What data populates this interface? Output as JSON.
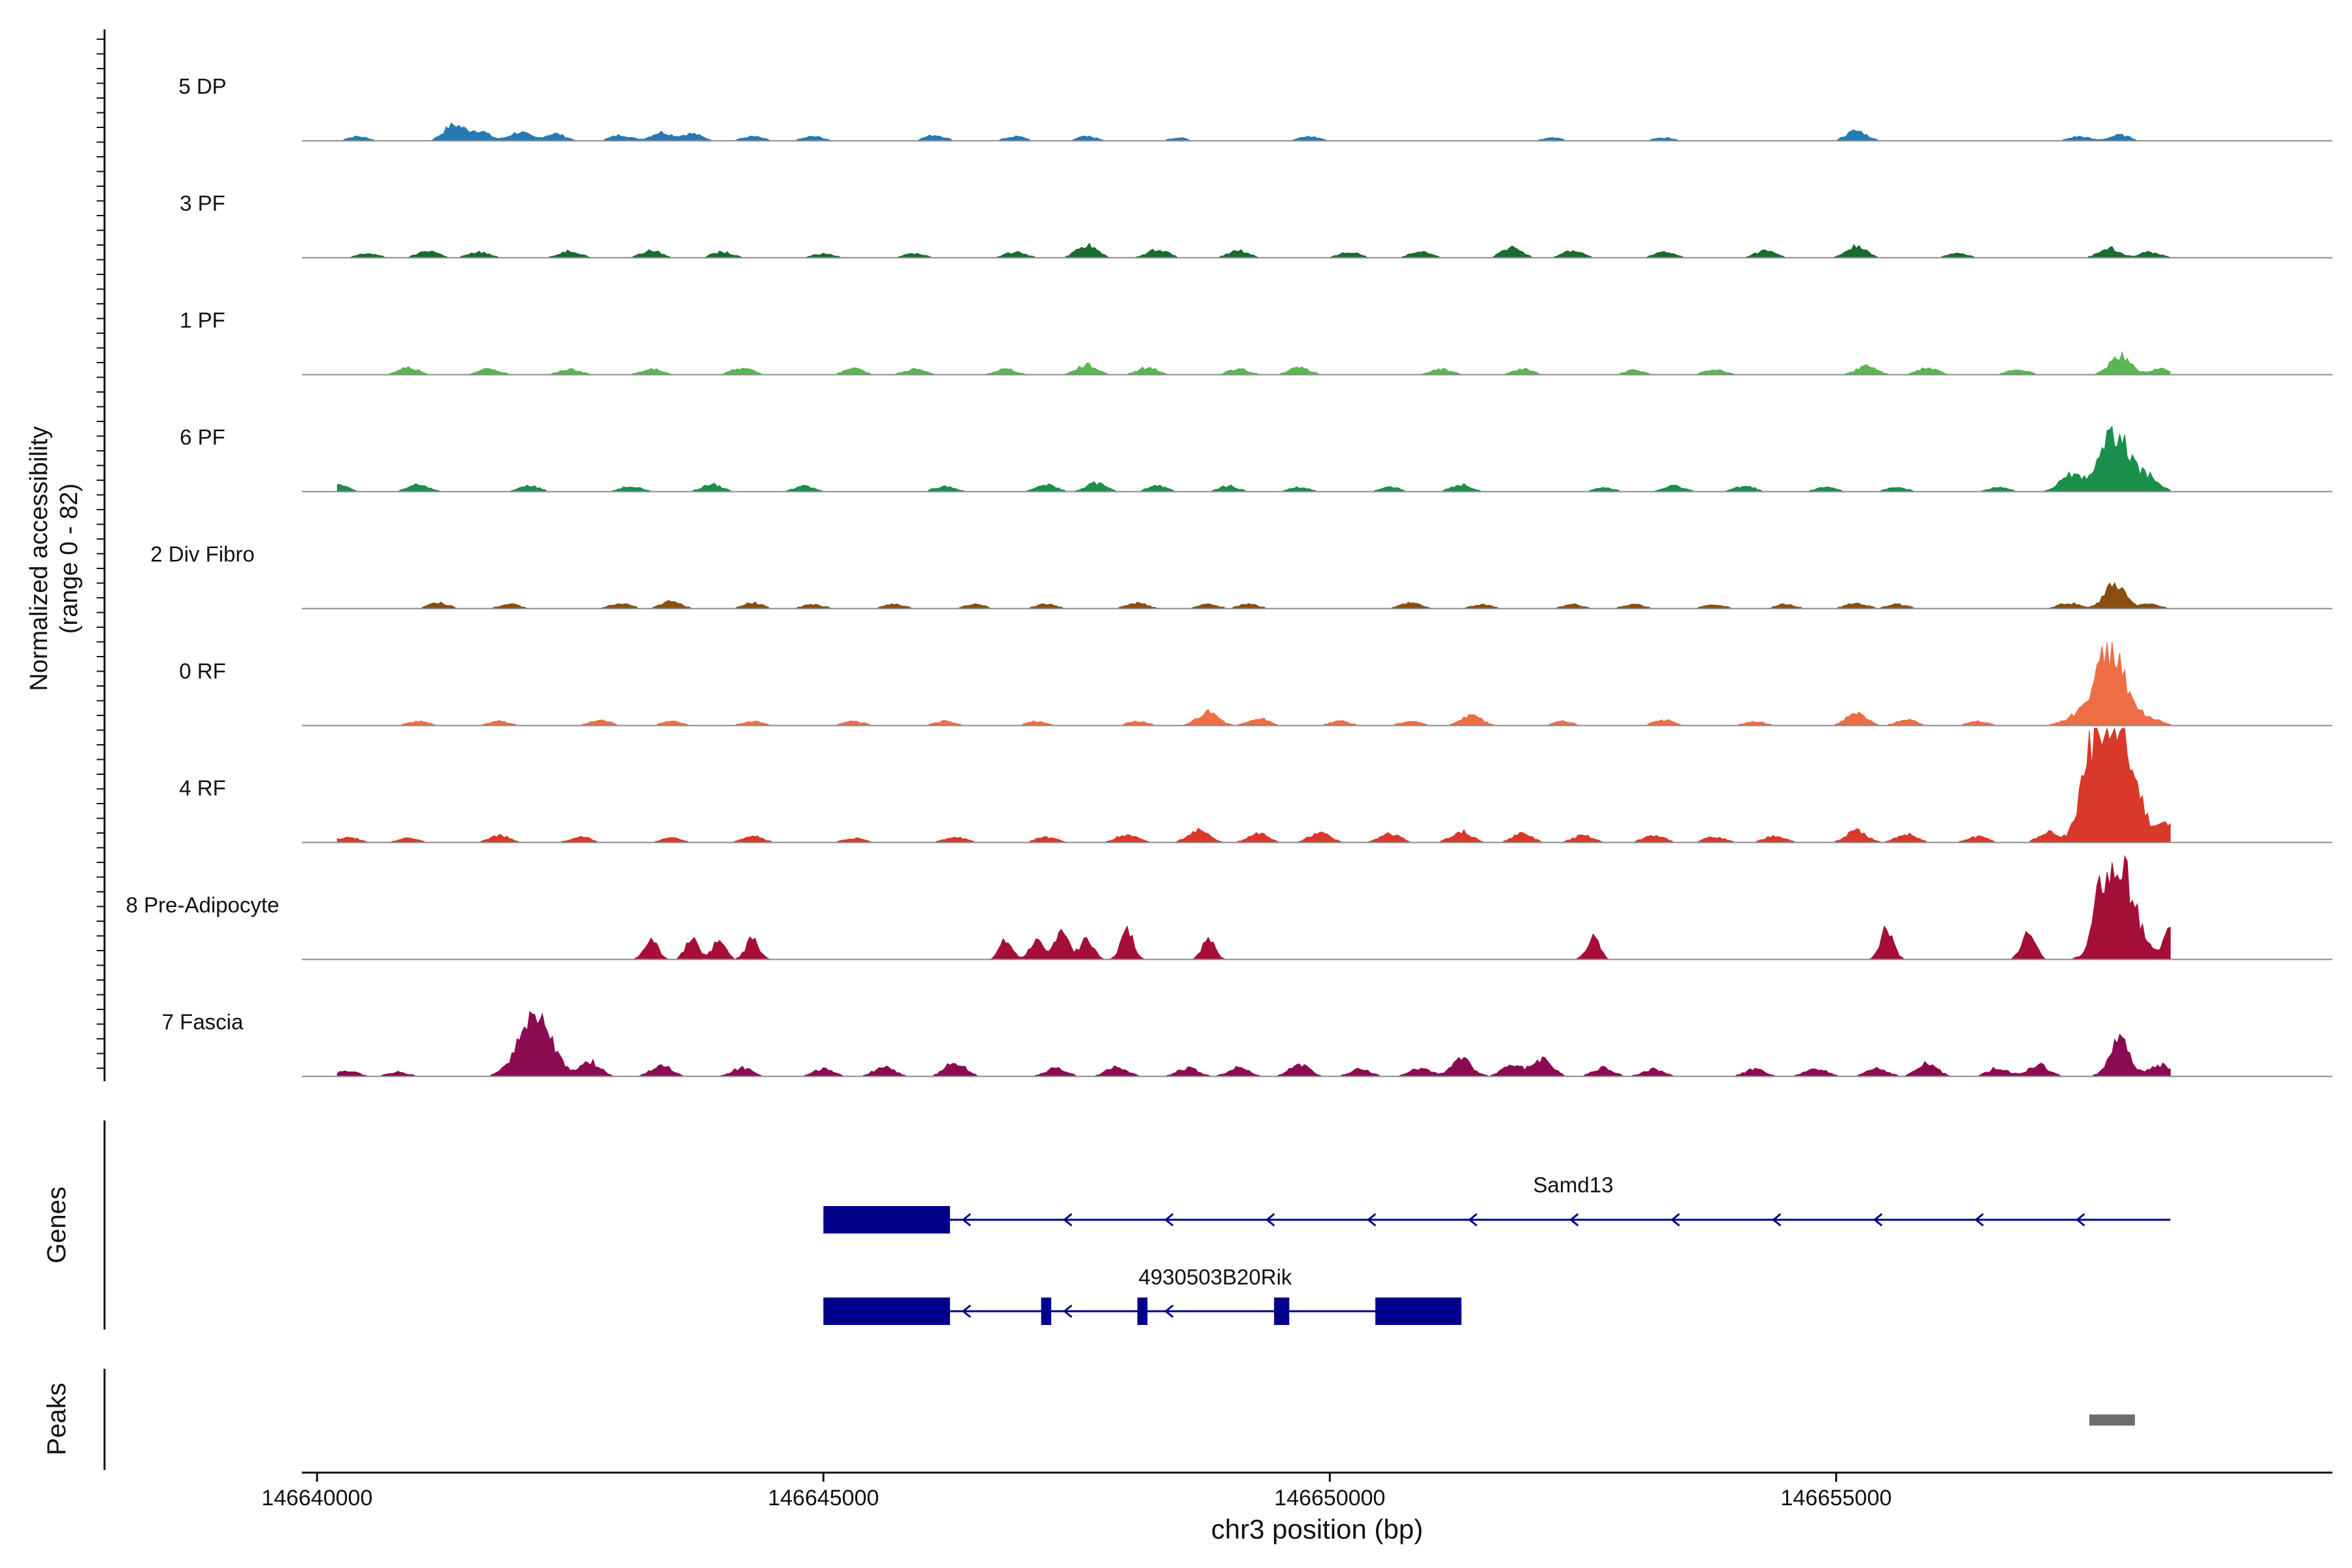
{
  "chart_data": {
    "type": "area",
    "title": "",
    "ylabel": "Normalized accessibility",
    "ylabel_range": "(range 0 - 82)",
    "ylim": [
      0,
      82
    ],
    "xlabel": "chr3 position (bp)",
    "xlim": [
      146639850,
      146659900
    ],
    "xticks": [
      146640000,
      146645000,
      146650000,
      146655000
    ],
    "xtick_labels": [
      "146640000",
      "146645000",
      "146650000",
      "146655000"
    ],
    "tracks": [
      {
        "name": "5 DP",
        "color": "#2679b4",
        "peaks": [
          [
            146640400,
            3
          ],
          [
            146641350,
            11
          ],
          [
            146641600,
            7
          ],
          [
            146642000,
            6
          ],
          [
            146642350,
            5
          ],
          [
            146643000,
            4
          ],
          [
            146643400,
            6
          ],
          [
            146643700,
            5
          ],
          [
            146644300,
            3
          ],
          [
            146644900,
            3
          ],
          [
            146646100,
            4
          ],
          [
            146646900,
            3
          ],
          [
            146647600,
            3
          ],
          [
            146648500,
            2
          ],
          [
            146649800,
            3
          ],
          [
            146652200,
            2
          ],
          [
            146653300,
            2
          ],
          [
            146655200,
            7
          ],
          [
            146657400,
            3
          ],
          [
            146657800,
            4
          ]
        ]
      },
      {
        "name": "3 PF",
        "color": "#1a6b2f",
        "peaks": [
          [
            146640500,
            3
          ],
          [
            146641100,
            5
          ],
          [
            146641600,
            4
          ],
          [
            146642500,
            5
          ],
          [
            146643300,
            5
          ],
          [
            146644000,
            4
          ],
          [
            146645000,
            3
          ],
          [
            146645900,
            3
          ],
          [
            146646900,
            4
          ],
          [
            146647600,
            9
          ],
          [
            146648300,
            6
          ],
          [
            146649100,
            5
          ],
          [
            146650200,
            4
          ],
          [
            146650900,
            5
          ],
          [
            146651800,
            7
          ],
          [
            146652400,
            5
          ],
          [
            146653300,
            4
          ],
          [
            146654300,
            5
          ],
          [
            146655200,
            8
          ],
          [
            146656200,
            3
          ],
          [
            146657700,
            7
          ],
          [
            146658100,
            4
          ]
        ]
      },
      {
        "name": "1 PF",
        "color": "#5bb555",
        "peaks": [
          [
            146640900,
            5
          ],
          [
            146641700,
            4
          ],
          [
            146642500,
            4
          ],
          [
            146643300,
            4
          ],
          [
            146644200,
            5
          ],
          [
            146645300,
            4
          ],
          [
            146645900,
            4
          ],
          [
            146646800,
            4
          ],
          [
            146647600,
            7
          ],
          [
            146648200,
            5
          ],
          [
            146649100,
            4
          ],
          [
            146649700,
            5
          ],
          [
            146651100,
            4
          ],
          [
            146651900,
            4
          ],
          [
            146653000,
            3
          ],
          [
            146653800,
            4
          ],
          [
            146655300,
            6
          ],
          [
            146655900,
            5
          ],
          [
            146656800,
            4
          ],
          [
            146657800,
            14
          ],
          [
            146658200,
            4
          ]
        ]
      },
      {
        "name": "6 PF",
        "color": "#1a8f4c",
        "peaks": [
          [
            146640200,
            6
          ],
          [
            146641000,
            5
          ],
          [
            146642100,
            4
          ],
          [
            146643100,
            4
          ],
          [
            146643900,
            5
          ],
          [
            146644800,
            4
          ],
          [
            146646200,
            4
          ],
          [
            146647200,
            5
          ],
          [
            146647700,
            6
          ],
          [
            146648300,
            4
          ],
          [
            146649000,
            4
          ],
          [
            146649700,
            3
          ],
          [
            146650600,
            3
          ],
          [
            146651300,
            5
          ],
          [
            146652700,
            3
          ],
          [
            146653400,
            4
          ],
          [
            146654100,
            4
          ],
          [
            146654900,
            3
          ],
          [
            146655600,
            3
          ],
          [
            146656600,
            3
          ],
          [
            146657300,
            12
          ],
          [
            146657750,
            40
          ],
          [
            146658100,
            8
          ]
        ]
      },
      {
        "name": "2 Div Fibro",
        "color": "#8a4f0e",
        "peaks": [
          [
            146641200,
            4
          ],
          [
            146641900,
            3
          ],
          [
            146643000,
            4
          ],
          [
            146643500,
            5
          ],
          [
            146644300,
            4
          ],
          [
            146644900,
            3
          ],
          [
            146645700,
            3
          ],
          [
            146646500,
            3
          ],
          [
            146647200,
            3
          ],
          [
            146648100,
            4
          ],
          [
            146648800,
            3
          ],
          [
            146649200,
            3
          ],
          [
            146650800,
            4
          ],
          [
            146651500,
            3
          ],
          [
            146652400,
            3
          ],
          [
            146653000,
            3
          ],
          [
            146653800,
            3
          ],
          [
            146654500,
            3
          ],
          [
            146655200,
            4
          ],
          [
            146655600,
            3
          ],
          [
            146657300,
            4
          ],
          [
            146657750,
            17
          ],
          [
            146658100,
            3
          ]
        ]
      },
      {
        "name": "0 RF",
        "color": "#ee6e46",
        "peaks": [
          [
            146641000,
            3
          ],
          [
            146641800,
            3
          ],
          [
            146642800,
            4
          ],
          [
            146643500,
            3
          ],
          [
            146644300,
            3
          ],
          [
            146645300,
            3
          ],
          [
            146646200,
            3
          ],
          [
            146647100,
            3
          ],
          [
            146648100,
            3
          ],
          [
            146648800,
            10
          ],
          [
            146649300,
            5
          ],
          [
            146650100,
            3
          ],
          [
            146650800,
            3
          ],
          [
            146651400,
            7
          ],
          [
            146652300,
            3
          ],
          [
            146653300,
            4
          ],
          [
            146654200,
            3
          ],
          [
            146655200,
            9
          ],
          [
            146655700,
            4
          ],
          [
            146656400,
            3
          ],
          [
            146657300,
            4
          ],
          [
            146657700,
            52
          ],
          [
            146658100,
            5
          ]
        ]
      },
      {
        "name": "4 RF",
        "color": "#d9382b",
        "peaks": [
          [
            146640300,
            4
          ],
          [
            146640900,
            3
          ],
          [
            146641800,
            5
          ],
          [
            146642600,
            4
          ],
          [
            146643500,
            3
          ],
          [
            146644300,
            5
          ],
          [
            146645300,
            3
          ],
          [
            146646300,
            4
          ],
          [
            146647200,
            4
          ],
          [
            146648000,
            6
          ],
          [
            146648700,
            9
          ],
          [
            146649300,
            6
          ],
          [
            146649900,
            7
          ],
          [
            146650600,
            6
          ],
          [
            146651300,
            8
          ],
          [
            146651900,
            6
          ],
          [
            146652500,
            5
          ],
          [
            146653200,
            5
          ],
          [
            146653800,
            4
          ],
          [
            146654400,
            5
          ],
          [
            146655200,
            8
          ],
          [
            146655700,
            6
          ],
          [
            146656400,
            4
          ],
          [
            146657100,
            7
          ],
          [
            146657500,
            30
          ],
          [
            146657700,
            82
          ],
          [
            146657950,
            25
          ],
          [
            146658250,
            13
          ]
        ]
      },
      {
        "name": "8 Pre-Adipocyte",
        "color": "#a50e37",
        "peaks": [
          [
            146643300,
            14
          ],
          [
            146643700,
            14
          ],
          [
            146643970,
            14
          ],
          [
            146644300,
            14
          ],
          [
            146646800,
            13
          ],
          [
            146647100,
            13
          ],
          [
            146647350,
            23
          ],
          [
            146647600,
            16
          ],
          [
            146648000,
            20
          ],
          [
            146648800,
            14
          ],
          [
            146652600,
            15
          ],
          [
            146655500,
            23
          ],
          [
            146656900,
            24
          ],
          [
            146657600,
            22
          ],
          [
            146657800,
            64
          ],
          [
            146658300,
            20
          ]
        ]
      },
      {
        "name": "7 Fascia",
        "color": "#8b0b52",
        "peaks": [
          [
            146640300,
            4
          ],
          [
            146640800,
            3
          ],
          [
            146642150,
            45
          ],
          [
            146642700,
            10
          ],
          [
            146643400,
            8
          ],
          [
            146644200,
            6
          ],
          [
            146645000,
            5
          ],
          [
            146645600,
            7
          ],
          [
            146646300,
            10
          ],
          [
            146647300,
            6
          ],
          [
            146647900,
            7
          ],
          [
            146648600,
            6
          ],
          [
            146649100,
            6
          ],
          [
            146649700,
            8
          ],
          [
            146650300,
            5
          ],
          [
            146650900,
            6
          ],
          [
            146651300,
            12
          ],
          [
            146651800,
            8
          ],
          [
            146652100,
            12
          ],
          [
            146652700,
            6
          ],
          [
            146653200,
            5
          ],
          [
            146654200,
            5
          ],
          [
            146654800,
            6
          ],
          [
            146655400,
            6
          ],
          [
            146655900,
            9
          ],
          [
            146656600,
            6
          ],
          [
            146657000,
            8
          ],
          [
            146657800,
            25
          ],
          [
            146658200,
            8
          ]
        ]
      }
    ],
    "genes_label": "Genes",
    "peaks_label": "Peaks",
    "gene_color": "#00008b",
    "genes": [
      {
        "name": "Samd13",
        "strand": "-",
        "start": 146645000,
        "end": 146658300,
        "exons": [
          [
            146645000,
            146646250
          ]
        ]
      },
      {
        "name": "4930503B20Rik",
        "strand": "-",
        "start": 146645000,
        "end": 146651300,
        "exons": [
          [
            146645000,
            146646250
          ],
          [
            146647150,
            146647250
          ],
          [
            146648100,
            146648200
          ],
          [
            146649450,
            146649600
          ],
          [
            146650450,
            146651300
          ]
        ]
      }
    ],
    "peaks_color": "#6d6d6d",
    "peak_regions": [
      [
        146657500,
        146657950
      ]
    ]
  }
}
